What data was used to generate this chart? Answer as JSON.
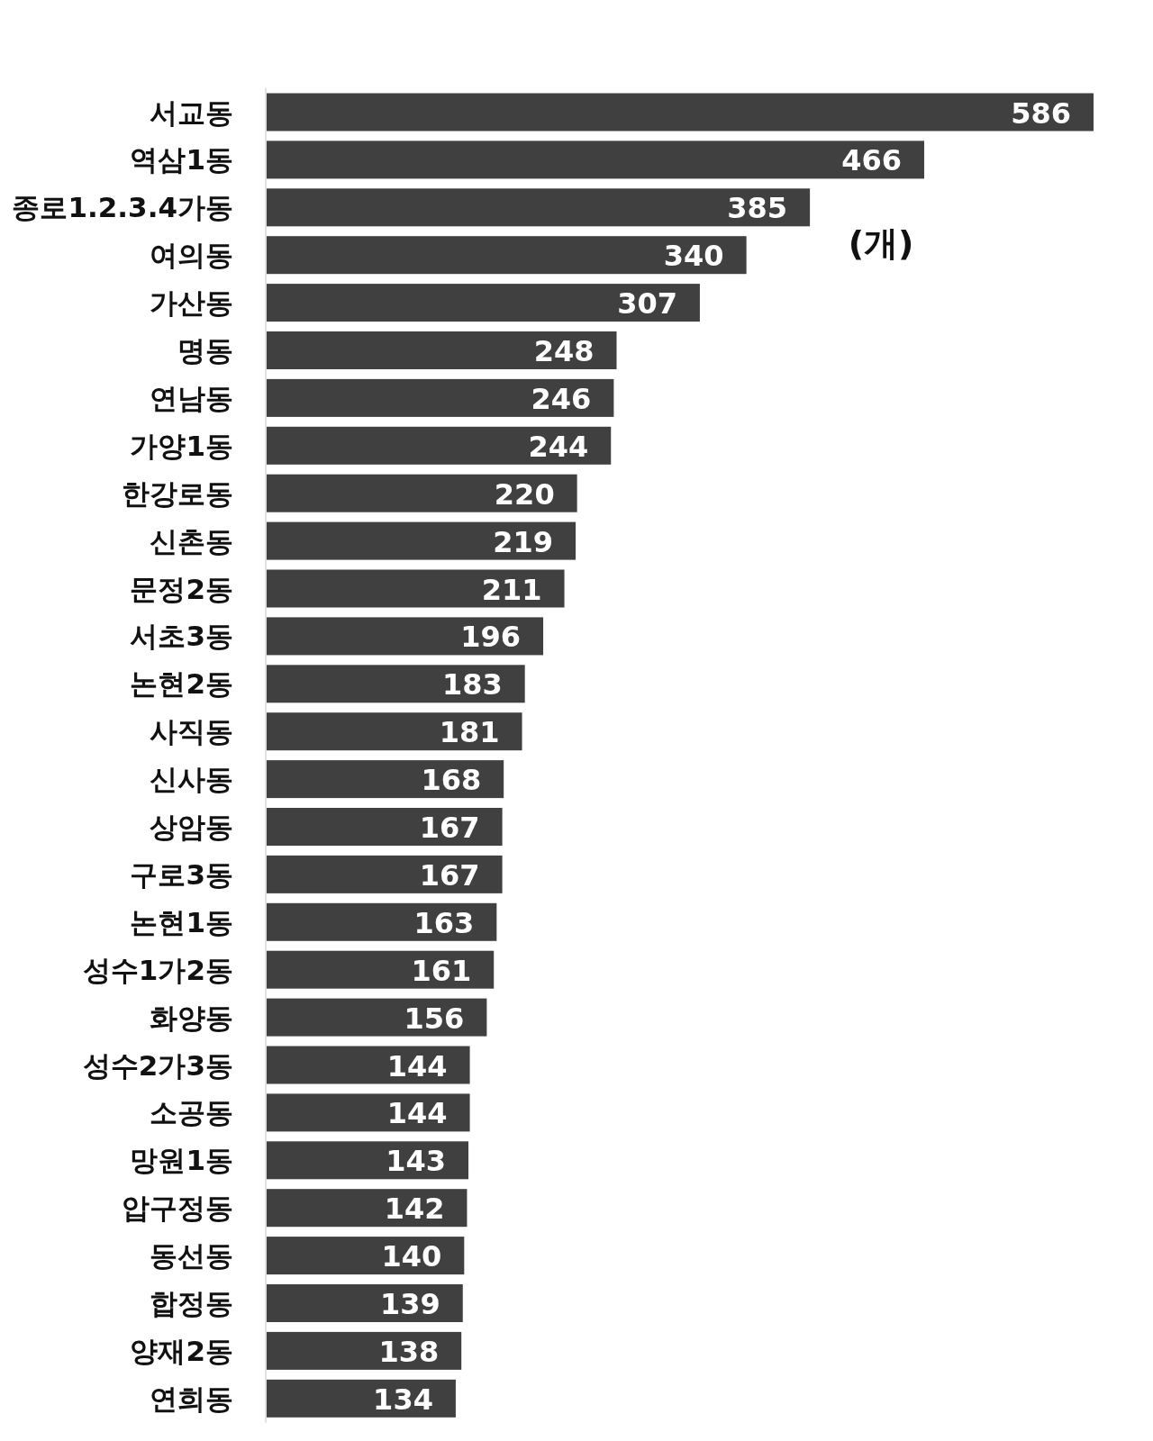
{
  "chart_data": {
    "type": "bar",
    "orientation": "horizontal",
    "categories": [
      "서교동",
      "역삼1동",
      "종로1.2.3.4가동",
      "여의동",
      "가산동",
      "명동",
      "연남동",
      "가양1동",
      "한강로동",
      "신촌동",
      "문정2동",
      "서초3동",
      "논현2동",
      "사직동",
      "신사동",
      "상암동",
      "구로3동",
      "논현1동",
      "성수1가2동",
      "화양동",
      "성수2가3동",
      "소공동",
      "망원1동",
      "압구정동",
      "동선동",
      "합정동",
      "양재2동",
      "연희동"
    ],
    "values": [
      586,
      466,
      385,
      340,
      307,
      248,
      246,
      244,
      220,
      219,
      211,
      196,
      183,
      181,
      168,
      167,
      167,
      163,
      161,
      156,
      144,
      144,
      143,
      142,
      140,
      139,
      138,
      134
    ],
    "color": "#404040",
    "data_labels": true,
    "annotations": [
      "(개)"
    ]
  }
}
